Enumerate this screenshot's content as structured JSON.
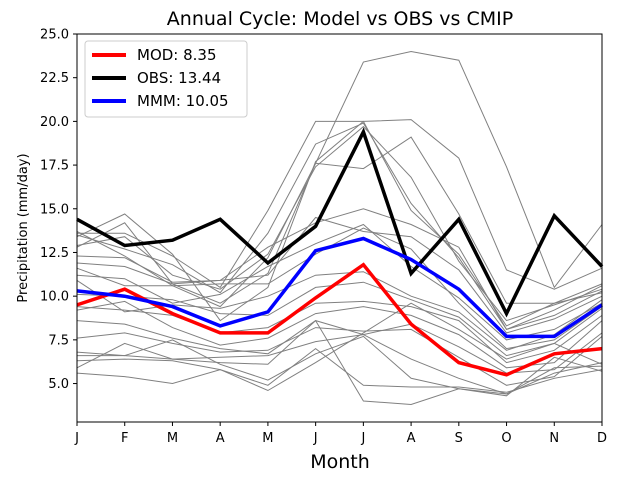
{
  "chart_data": {
    "type": "line",
    "title": "Annual Cycle: Model vs OBS vs CMIP",
    "xlabel": "Month",
    "ylabel": "Precipitation (mm/day)",
    "categories": [
      "J",
      "F",
      "M",
      "A",
      "M",
      "J",
      "J",
      "A",
      "S",
      "O",
      "N",
      "D"
    ],
    "ylim": [
      2.8,
      25.0
    ],
    "yticks": [
      5.0,
      7.5,
      10.0,
      12.5,
      15.0,
      17.5,
      20.0,
      22.5,
      25.0
    ],
    "ytick_labels": [
      "5.0",
      "7.5",
      "10.0",
      "12.5",
      "15.0",
      "17.5",
      "20.0",
      "22.5",
      "25.0"
    ],
    "legend_position": "top-left",
    "cmip_color": "#808080",
    "cmip_models": [
      [
        13.7,
        12.3,
        10.6,
        9.4,
        12.2,
        17.6,
        23.4,
        24.0,
        23.5,
        17.4,
        10.5,
        14.1
      ],
      [
        13.4,
        14.7,
        12.4,
        8.6,
        10.5,
        17.7,
        20.0,
        20.1,
        17.9,
        11.5,
        10.4,
        11.6
      ],
      [
        12.9,
        13.4,
        11.2,
        10.4,
        12.4,
        17.4,
        19.7,
        16.8,
        12.0,
        8.6,
        9.5,
        10.4
      ],
      [
        13.6,
        13.6,
        12.3,
        10.5,
        14.9,
        20.0,
        20.0,
        14.9,
        12.4,
        8.3,
        9.6,
        10.2
      ],
      [
        13.5,
        12.7,
        11.8,
        10.2,
        13.6,
        18.7,
        19.9,
        15.3,
        12.2,
        8.1,
        9.2,
        10.6
      ],
      [
        12.8,
        14.2,
        10.7,
        9.6,
        11.3,
        17.6,
        17.3,
        19.1,
        14.7,
        9.6,
        9.6,
        10.7
      ],
      [
        12.3,
        12.2,
        10.8,
        10.9,
        12.8,
        14.2,
        15.0,
        14.1,
        12.8,
        8.1,
        8.9,
        10.3
      ],
      [
        11.9,
        11.7,
        10.7,
        10.9,
        11.2,
        14.5,
        13.7,
        13.4,
        11.5,
        7.9,
        8.7,
        10.0
      ],
      [
        11.2,
        11.0,
        9.6,
        10.1,
        11.7,
        13.0,
        14.1,
        11.7,
        9.9,
        7.5,
        8.1,
        9.6
      ],
      [
        11.6,
        10.6,
        10.6,
        10.7,
        10.7,
        12.4,
        13.9,
        12.7,
        9.6,
        7.0,
        7.5,
        9.4
      ],
      [
        10.9,
        9.1,
        9.5,
        9.3,
        10.0,
        11.2,
        11.4,
        10.0,
        9.1,
        6.9,
        7.8,
        9.8
      ],
      [
        10.1,
        10.0,
        9.8,
        9.0,
        8.9,
        10.5,
        10.8,
        9.8,
        8.8,
        6.6,
        7.3,
        9.3
      ],
      [
        9.4,
        9.2,
        8.9,
        7.9,
        8.2,
        9.6,
        9.7,
        9.4,
        8.6,
        6.2,
        6.9,
        8.9
      ],
      [
        9.2,
        9.7,
        8.2,
        7.2,
        7.6,
        9.0,
        9.4,
        8.9,
        7.8,
        5.9,
        6.2,
        8.6
      ],
      [
        8.6,
        8.4,
        7.6,
        7.0,
        6.7,
        8.6,
        7.8,
        8.4,
        7.1,
        5.6,
        5.8,
        7.9
      ],
      [
        7.6,
        7.9,
        7.3,
        6.8,
        6.9,
        8.2,
        8.0,
        8.1,
        6.5,
        4.9,
        5.4,
        7.7
      ],
      [
        6.8,
        6.6,
        6.4,
        6.5,
        6.6,
        7.4,
        7.8,
        6.4,
        5.3,
        4.4,
        5.6,
        6.2
      ],
      [
        6.6,
        6.6,
        7.5,
        6.1,
        5.2,
        6.7,
        7.7,
        5.3,
        4.7,
        4.3,
        6.5,
        5.7
      ],
      [
        6.3,
        6.4,
        6.3,
        5.8,
        4.9,
        7.0,
        4.9,
        4.8,
        4.8,
        4.5,
        5.3,
        5.8
      ],
      [
        5.9,
        7.3,
        6.4,
        6.2,
        6.1,
        8.6,
        4.0,
        3.8,
        4.7,
        4.4,
        5.9,
        6.0
      ],
      [
        5.6,
        5.4,
        5.0,
        5.8,
        4.6,
        6.2,
        7.9,
        9.6,
        8.1,
        6.4,
        7.3,
        6.1
      ]
    ],
    "series": [
      {
        "name": "MOD",
        "label": "MOD: 8.35",
        "color": "#ff0000",
        "values": [
          9.5,
          10.4,
          9.0,
          7.9,
          7.9,
          9.9,
          11.8,
          8.4,
          6.2,
          5.5,
          6.7,
          7.0
        ]
      },
      {
        "name": "OBS",
        "label": "OBS: 13.44",
        "color": "#000000",
        "values": [
          14.4,
          12.9,
          13.2,
          14.4,
          11.9,
          14.0,
          19.4,
          11.3,
          14.4,
          9.0,
          14.6,
          11.7
        ]
      },
      {
        "name": "MMM",
        "label": "MMM: 10.05",
        "color": "#0000ff",
        "values": [
          10.3,
          10.0,
          9.4,
          8.3,
          9.1,
          12.6,
          13.3,
          12.1,
          10.4,
          7.7,
          7.7,
          9.5
        ]
      }
    ]
  }
}
